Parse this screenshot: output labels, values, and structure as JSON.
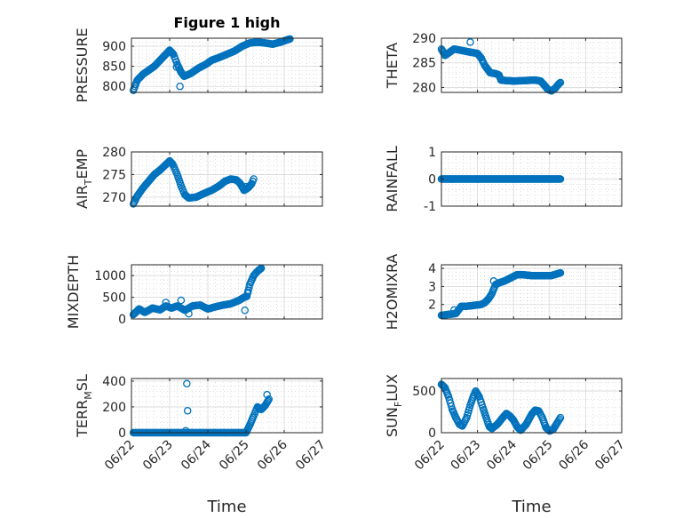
{
  "figure_title": "Figure 1 high",
  "colors": {
    "marker": "#0072BD",
    "axes": "#262626",
    "grid": "#d9d9d9",
    "background": "#ffffff"
  },
  "chart_data": [
    {
      "id": "pressure",
      "type": "scatter",
      "marker": "circle-open",
      "title": "Figure 1 high",
      "ylabel": "PRESSURE",
      "xlabel": "",
      "xlim": [
        0,
        5
      ],
      "ylim": [
        785,
        920
      ],
      "yticks": [
        800,
        850,
        900
      ],
      "ytick_labels": [
        "800",
        "850",
        "900"
      ],
      "xticks": [
        0,
        1,
        2,
        3,
        4,
        5
      ],
      "xtick_labels": [],
      "grid": true,
      "minor_grid": true,
      "keypoints": [
        [
          0.05,
          790
        ],
        [
          0.15,
          815
        ],
        [
          0.3,
          830
        ],
        [
          0.45,
          840
        ],
        [
          0.6,
          850
        ],
        [
          0.75,
          865
        ],
        [
          0.9,
          880
        ],
        [
          1.0,
          890
        ],
        [
          1.1,
          880
        ],
        [
          1.2,
          855
        ],
        [
          1.3,
          835
        ],
        [
          1.38,
          825
        ],
        [
          1.55,
          832
        ],
        [
          1.75,
          845
        ],
        [
          1.95,
          855
        ],
        [
          2.1,
          865
        ],
        [
          2.3,
          872
        ],
        [
          2.5,
          880
        ],
        [
          2.7,
          888
        ],
        [
          2.9,
          900
        ],
        [
          3.1,
          908
        ],
        [
          3.3,
          910
        ],
        [
          3.5,
          908
        ],
        [
          3.7,
          905
        ],
        [
          3.9,
          910
        ],
        [
          4.05,
          915
        ],
        [
          4.15,
          918
        ]
      ],
      "extra_points": [
        [
          1.27,
          800
        ],
        [
          1.18,
          848
        ]
      ]
    },
    {
      "id": "theta",
      "type": "scatter",
      "marker": "circle-open",
      "title": "",
      "ylabel": "THETA",
      "xlabel": "",
      "xlim": [
        0,
        5
      ],
      "ylim": [
        279,
        290
      ],
      "yticks": [
        280,
        285,
        290
      ],
      "ytick_labels": [
        "280",
        "285",
        "290"
      ],
      "xticks": [
        0,
        1,
        2,
        3,
        4,
        5
      ],
      "xtick_labels": [],
      "grid": true,
      "minor_grid": true,
      "keypoints": [
        [
          0.0,
          287.8
        ],
        [
          0.1,
          286.5
        ],
        [
          0.2,
          287.0
        ],
        [
          0.35,
          287.8
        ],
        [
          0.5,
          287.6
        ],
        [
          0.7,
          287.3
        ],
        [
          0.85,
          287.1
        ],
        [
          1.0,
          286.9
        ],
        [
          1.1,
          286.0
        ],
        [
          1.2,
          284.5
        ],
        [
          1.35,
          283.0
        ],
        [
          1.5,
          282.8
        ],
        [
          1.6,
          282.5
        ],
        [
          1.65,
          281.5
        ],
        [
          1.8,
          281.4
        ],
        [
          2.0,
          281.3
        ],
        [
          2.3,
          281.4
        ],
        [
          2.6,
          281.5
        ],
        [
          2.75,
          281.3
        ],
        [
          2.85,
          280.5
        ],
        [
          2.95,
          279.6
        ],
        [
          3.05,
          279.3
        ],
        [
          3.15,
          279.8
        ],
        [
          3.25,
          280.7
        ],
        [
          3.3,
          281.0
        ]
      ],
      "extra_points": [
        [
          0.8,
          289.2
        ]
      ]
    },
    {
      "id": "air_temp",
      "type": "scatter",
      "marker": "circle-open",
      "title": "",
      "ylabel_main": "AIR",
      "ylabel_sub": "T",
      "ylabel_rest": "EMP",
      "xlabel": "",
      "xlim": [
        0,
        5
      ],
      "ylim": [
        268,
        280
      ],
      "yticks": [
        270,
        275,
        280
      ],
      "ytick_labels": [
        "270",
        "275",
        "280"
      ],
      "xticks": [
        0,
        1,
        2,
        3,
        4,
        5
      ],
      "xtick_labels": [],
      "grid": true,
      "minor_grid": true,
      "keypoints": [
        [
          0.05,
          268.5
        ],
        [
          0.15,
          270.2
        ],
        [
          0.3,
          272.0
        ],
        [
          0.45,
          273.5
        ],
        [
          0.6,
          275.0
        ],
        [
          0.75,
          276.0
        ],
        [
          0.9,
          277.2
        ],
        [
          1.0,
          278.0
        ],
        [
          1.08,
          277.3
        ],
        [
          1.2,
          275.0
        ],
        [
          1.3,
          272.5
        ],
        [
          1.4,
          270.5
        ],
        [
          1.5,
          269.8
        ],
        [
          1.7,
          270.0
        ],
        [
          1.9,
          270.8
        ],
        [
          2.1,
          271.5
        ],
        [
          2.3,
          272.5
        ],
        [
          2.45,
          273.5
        ],
        [
          2.6,
          274.0
        ],
        [
          2.75,
          273.8
        ],
        [
          2.85,
          273.0
        ],
        [
          2.95,
          271.5
        ],
        [
          3.05,
          272.0
        ],
        [
          3.15,
          273.0
        ],
        [
          3.2,
          274.0
        ]
      ],
      "extra_points": [
        [
          3.0,
          272.3
        ]
      ]
    },
    {
      "id": "rainfall",
      "type": "scatter",
      "marker": "circle-open",
      "title": "",
      "ylabel": "RAINFALL",
      "xlabel": "",
      "xlim": [
        0,
        5
      ],
      "ylim": [
        -1,
        1
      ],
      "yticks": [
        -1,
        0,
        1
      ],
      "ytick_labels": [
        "-1",
        "0",
        "1"
      ],
      "xticks": [
        0,
        1,
        2,
        3,
        4,
        5
      ],
      "xtick_labels": [],
      "grid": true,
      "minor_grid": true,
      "keypoints": [
        [
          0.0,
          0
        ],
        [
          3.3,
          0
        ]
      ],
      "extra_points": []
    },
    {
      "id": "mixdepth",
      "type": "scatter",
      "marker": "circle-open",
      "title": "",
      "ylabel": "MIXDEPTH",
      "xlabel": "",
      "xlim": [
        0,
        5
      ],
      "ylim": [
        0,
        1250
      ],
      "yticks": [
        0,
        500,
        1000
      ],
      "ytick_labels": [
        "0",
        "500",
        "1000"
      ],
      "xticks": [
        0,
        1,
        2,
        3,
        4,
        5
      ],
      "xtick_labels": [],
      "grid": true,
      "minor_grid": true,
      "keypoints": [
        [
          0.05,
          100
        ],
        [
          0.2,
          230
        ],
        [
          0.35,
          150
        ],
        [
          0.55,
          250
        ],
        [
          0.75,
          210
        ],
        [
          0.9,
          300
        ],
        [
          1.05,
          250
        ],
        [
          1.2,
          300
        ],
        [
          1.4,
          200
        ],
        [
          1.6,
          300
        ],
        [
          1.8,
          320
        ],
        [
          2.0,
          230
        ],
        [
          2.2,
          280
        ],
        [
          2.4,
          320
        ],
        [
          2.6,
          350
        ],
        [
          2.8,
          420
        ],
        [
          2.95,
          500
        ],
        [
          3.02,
          520
        ],
        [
          3.1,
          800
        ],
        [
          3.2,
          1000
        ],
        [
          3.3,
          1100
        ],
        [
          3.4,
          1170
        ]
      ],
      "extra_points": [
        [
          0.9,
          380
        ],
        [
          1.3,
          430
        ],
        [
          1.5,
          120
        ],
        [
          2.97,
          200
        ],
        [
          3.05,
          620
        ]
      ]
    },
    {
      "id": "h2omixra",
      "type": "scatter",
      "marker": "circle-open",
      "title": "",
      "ylabel": "H2OMIXRA",
      "xlabel": "",
      "xlim": [
        0,
        5
      ],
      "ylim": [
        1.2,
        4.2
      ],
      "yticks": [
        2,
        3,
        4
      ],
      "ytick_labels": [
        "2",
        "3",
        "4"
      ],
      "xticks": [
        0,
        1,
        2,
        3,
        4,
        5
      ],
      "xtick_labels": [],
      "grid": true,
      "minor_grid": true,
      "keypoints": [
        [
          0.0,
          1.4
        ],
        [
          0.2,
          1.45
        ],
        [
          0.4,
          1.5
        ],
        [
          0.55,
          1.9
        ],
        [
          0.7,
          1.9
        ],
        [
          0.9,
          1.95
        ],
        [
          1.1,
          2.0
        ],
        [
          1.2,
          2.1
        ],
        [
          1.3,
          2.3
        ],
        [
          1.4,
          2.6
        ],
        [
          1.5,
          3.1
        ],
        [
          1.6,
          3.2
        ],
        [
          1.75,
          3.3
        ],
        [
          1.95,
          3.5
        ],
        [
          2.1,
          3.65
        ],
        [
          2.25,
          3.65
        ],
        [
          2.5,
          3.6
        ],
        [
          2.8,
          3.6
        ],
        [
          3.05,
          3.6
        ],
        [
          3.3,
          3.75
        ]
      ],
      "extra_points": [
        [
          1.45,
          3.3
        ],
        [
          0.35,
          1.7
        ]
      ]
    },
    {
      "id": "terr_msl",
      "type": "scatter",
      "marker": "circle-open",
      "title": "",
      "ylabel_main": "TERR",
      "ylabel_sub": "M",
      "ylabel_rest": "SL",
      "xlabel": "Time",
      "xlim": [
        0,
        5
      ],
      "ylim": [
        0,
        420
      ],
      "yticks": [
        0,
        200,
        400
      ],
      "ytick_labels": [
        "0",
        "200",
        "400"
      ],
      "xticks": [
        0,
        1,
        2,
        3,
        4,
        5
      ],
      "xtick_labels": [
        "06/22",
        "06/23",
        "06/24",
        "06/25",
        "06/26",
        "06/27"
      ],
      "grid": true,
      "minor_grid": true,
      "keypoints": [
        [
          0.05,
          0
        ],
        [
          3.0,
          0
        ],
        [
          3.1,
          60
        ],
        [
          3.2,
          130
        ],
        [
          3.3,
          200
        ],
        [
          3.4,
          180
        ],
        [
          3.5,
          210
        ],
        [
          3.6,
          260
        ]
      ],
      "extra_points": [
        [
          1.45,
          380
        ],
        [
          1.47,
          170
        ],
        [
          1.42,
          15
        ],
        [
          3.55,
          295
        ]
      ]
    },
    {
      "id": "sun_flux",
      "type": "scatter",
      "marker": "circle-open",
      "title": "",
      "ylabel_main": "SUN",
      "ylabel_sub": "F",
      "ylabel_rest": "LUX",
      "xlabel": "Time",
      "xlim": [
        0,
        5
      ],
      "ylim": [
        0,
        650
      ],
      "yticks": [
        0,
        500
      ],
      "ytick_labels": [
        "0",
        "500"
      ],
      "xticks": [
        0,
        1,
        2,
        3,
        4,
        5
      ],
      "xtick_labels": [
        "06/22",
        "06/23",
        "06/24",
        "06/25",
        "06/26",
        "06/27"
      ],
      "grid": true,
      "minor_grid": true,
      "keypoints": [
        [
          0.0,
          580
        ],
        [
          0.1,
          540
        ],
        [
          0.2,
          430
        ],
        [
          0.3,
          280
        ],
        [
          0.4,
          180
        ],
        [
          0.5,
          100
        ],
        [
          0.58,
          80
        ],
        [
          0.7,
          180
        ],
        [
          0.8,
          330
        ],
        [
          0.88,
          430
        ],
        [
          0.95,
          500
        ],
        [
          1.05,
          430
        ],
        [
          1.15,
          300
        ],
        [
          1.25,
          170
        ],
        [
          1.33,
          70
        ],
        [
          1.4,
          50
        ],
        [
          1.55,
          100
        ],
        [
          1.7,
          180
        ],
        [
          1.8,
          230
        ],
        [
          1.9,
          200
        ],
        [
          2.0,
          150
        ],
        [
          2.1,
          70
        ],
        [
          2.2,
          30
        ],
        [
          2.35,
          100
        ],
        [
          2.5,
          220
        ],
        [
          2.6,
          270
        ],
        [
          2.7,
          260
        ],
        [
          2.8,
          180
        ],
        [
          2.9,
          60
        ],
        [
          3.0,
          20
        ],
        [
          3.1,
          40
        ],
        [
          3.2,
          110
        ],
        [
          3.3,
          180
        ]
      ],
      "extra_points": []
    }
  ]
}
